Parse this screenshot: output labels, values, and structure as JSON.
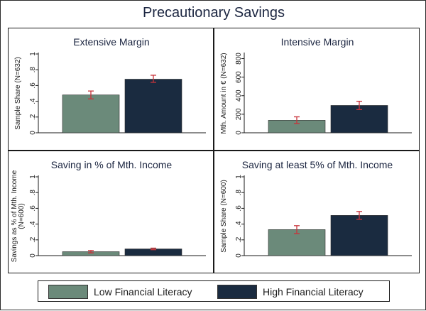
{
  "figure": {
    "title": "Precautionary Savings"
  },
  "legend": [
    {
      "name": "Low Financial Literacy",
      "color": "#6b8a7a"
    },
    {
      "name": "High Financial Literacy",
      "color": "#1a2b40"
    }
  ],
  "chart_data": [
    {
      "type": "bar",
      "title": "Extensive Margin",
      "ylabel": "Sample Share (N=632)",
      "ylim": [
        0,
        1
      ],
      "yticks": [
        0,
        0.2,
        0.4,
        0.6,
        0.8,
        1
      ],
      "ytick_labels": [
        "0",
        ".2",
        ".4",
        ".6",
        ".8",
        "1"
      ],
      "series": [
        {
          "name": "Low Financial Literacy",
          "value": 0.48,
          "ci": [
            0.43,
            0.53
          ]
        },
        {
          "name": "High Financial Literacy",
          "value": 0.68,
          "ci": [
            0.64,
            0.73
          ]
        }
      ]
    },
    {
      "type": "bar",
      "title": "Intensive Margin",
      "ylabel": "Mth. Amount in €  (N=632)",
      "ylim": [
        0,
        850
      ],
      "yticks": [
        0,
        200,
        400,
        600,
        800
      ],
      "ytick_labels": [
        "0",
        "200",
        "400",
        "600",
        "800"
      ],
      "series": [
        {
          "name": "Low Financial Literacy",
          "value": 135,
          "ci": [
            100,
            172
          ]
        },
        {
          "name": "High Financial Literacy",
          "value": 295,
          "ci": [
            250,
            340
          ]
        }
      ]
    },
    {
      "type": "bar",
      "title": "Saving in % of Mth. Income",
      "ylabel": "Savings as % of Mth. Income (N=600)",
      "ylim": [
        0,
        1
      ],
      "yticks": [
        0,
        0.2,
        0.4,
        0.6,
        0.8,
        1
      ],
      "ytick_labels": [
        "0",
        ".2",
        ".4",
        ".6",
        ".8",
        "1"
      ],
      "series": [
        {
          "name": "Low Financial Literacy",
          "value": 0.05,
          "ci": [
            0.035,
            0.065
          ]
        },
        {
          "name": "High Financial Literacy",
          "value": 0.085,
          "ci": [
            0.075,
            0.095
          ]
        }
      ]
    },
    {
      "type": "bar",
      "title": "Saving at least 5% of Mth. Income",
      "ylabel": "Sample Share (N=600)",
      "ylim": [
        0,
        1
      ],
      "yticks": [
        0,
        0.2,
        0.4,
        0.6,
        0.8,
        1
      ],
      "ytick_labels": [
        "0",
        ".2",
        ".4",
        ".6",
        ".8",
        "1"
      ],
      "series": [
        {
          "name": "Low Financial Literacy",
          "value": 0.33,
          "ci": [
            0.28,
            0.38
          ]
        },
        {
          "name": "High Financial Literacy",
          "value": 0.51,
          "ci": [
            0.46,
            0.56
          ]
        }
      ]
    }
  ],
  "style": {
    "error_bar_color": "#c8333a",
    "axis_color": "#1a1a1a",
    "title_color": "#1b2540"
  }
}
